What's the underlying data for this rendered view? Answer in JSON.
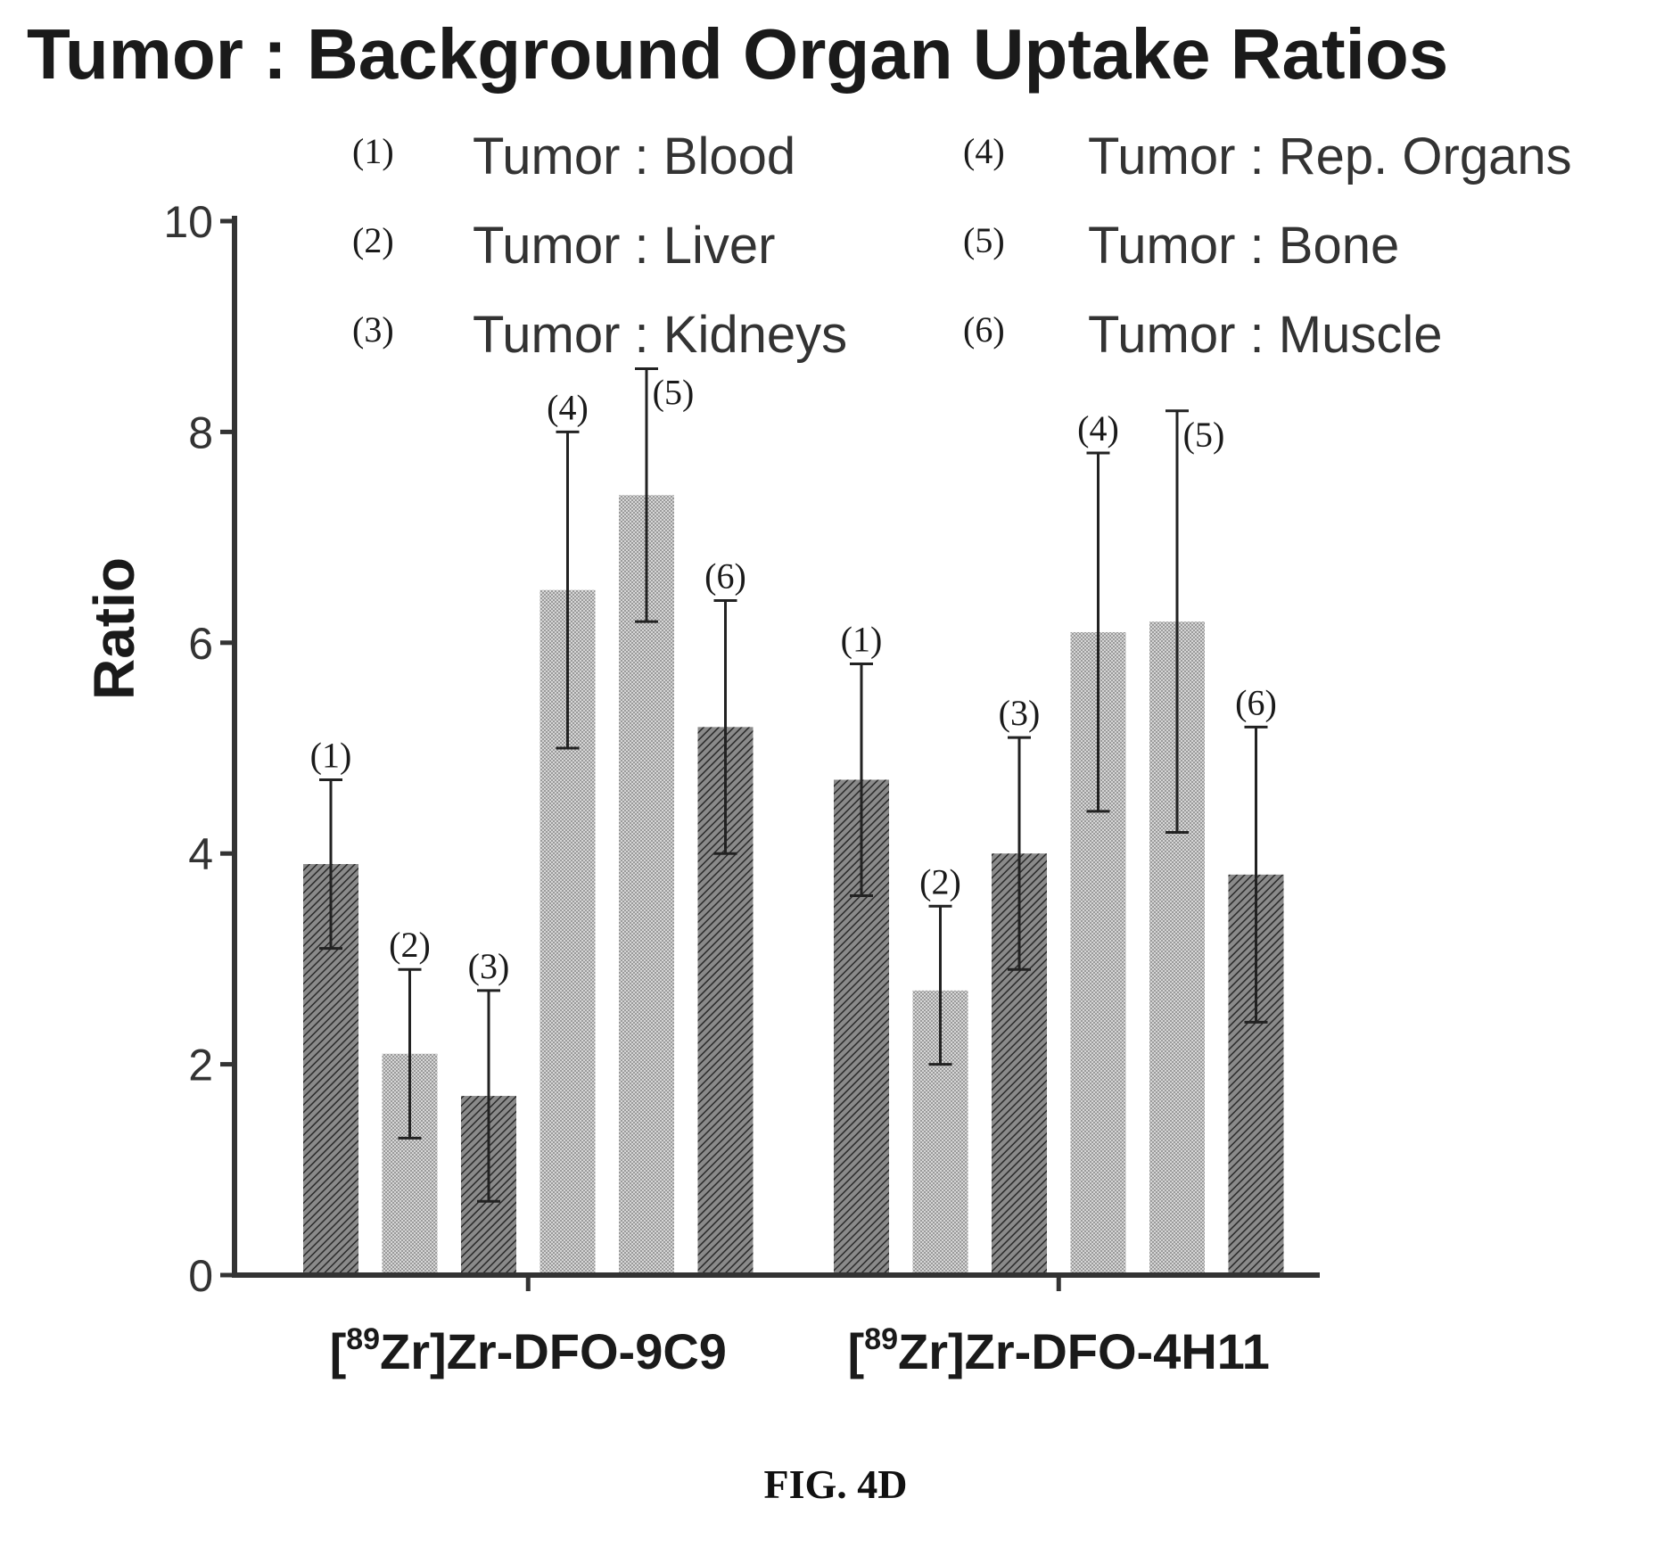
{
  "chart_data": {
    "type": "bar",
    "title": "Tumor : Background Organ Uptake Ratios",
    "ylabel": "Ratio",
    "xlabel": "",
    "ylim": [
      0,
      10
    ],
    "yticks": [
      0,
      2,
      4,
      6,
      8,
      10
    ],
    "grid": false,
    "legend_placement": "top-right",
    "groups": [
      {
        "pre": "[",
        "sup": "89",
        "post": "Zr]Zr-DFO-9C9"
      },
      {
        "pre": "[",
        "sup": "89",
        "post": "Zr]Zr-DFO-4H11"
      }
    ],
    "series": [
      {
        "name": "Tumor : Blood",
        "marker": "(1)",
        "values": [
          3.9,
          4.7
        ],
        "err_low": [
          3.1,
          3.6
        ],
        "err_high": [
          4.7,
          5.8
        ]
      },
      {
        "name": "Tumor : Liver",
        "marker": "(2)",
        "values": [
          2.1,
          2.7
        ],
        "err_low": [
          1.3,
          2.0
        ],
        "err_high": [
          2.9,
          3.5
        ]
      },
      {
        "name": "Tumor : Kidneys",
        "marker": "(3)",
        "values": [
          1.7,
          4.0
        ],
        "err_low": [
          0.7,
          2.9
        ],
        "err_high": [
          2.7,
          5.1
        ]
      },
      {
        "name": "Tumor : Rep. Organs",
        "marker": "(4)",
        "values": [
          6.5,
          6.1
        ],
        "err_low": [
          5.0,
          4.4
        ],
        "err_high": [
          8.0,
          7.8
        ]
      },
      {
        "name": "Tumor : Bone",
        "marker": "(5)",
        "values": [
          7.4,
          6.2
        ],
        "err_low": [
          6.2,
          4.2
        ],
        "err_high": [
          8.6,
          8.2
        ]
      },
      {
        "name": "Tumor : Muscle",
        "marker": "(6)",
        "values": [
          5.2,
          3.8
        ],
        "err_low": [
          4.0,
          2.4
        ],
        "err_high": [
          6.4,
          5.2
        ]
      }
    ],
    "series_shades": [
      "#6e6e6e",
      "#bdbdbd",
      "#6e6e6e",
      "#c8c8c8",
      "#b0b0b0",
      "#7a7a7a"
    ]
  },
  "figure_label": "FIG. 4D"
}
